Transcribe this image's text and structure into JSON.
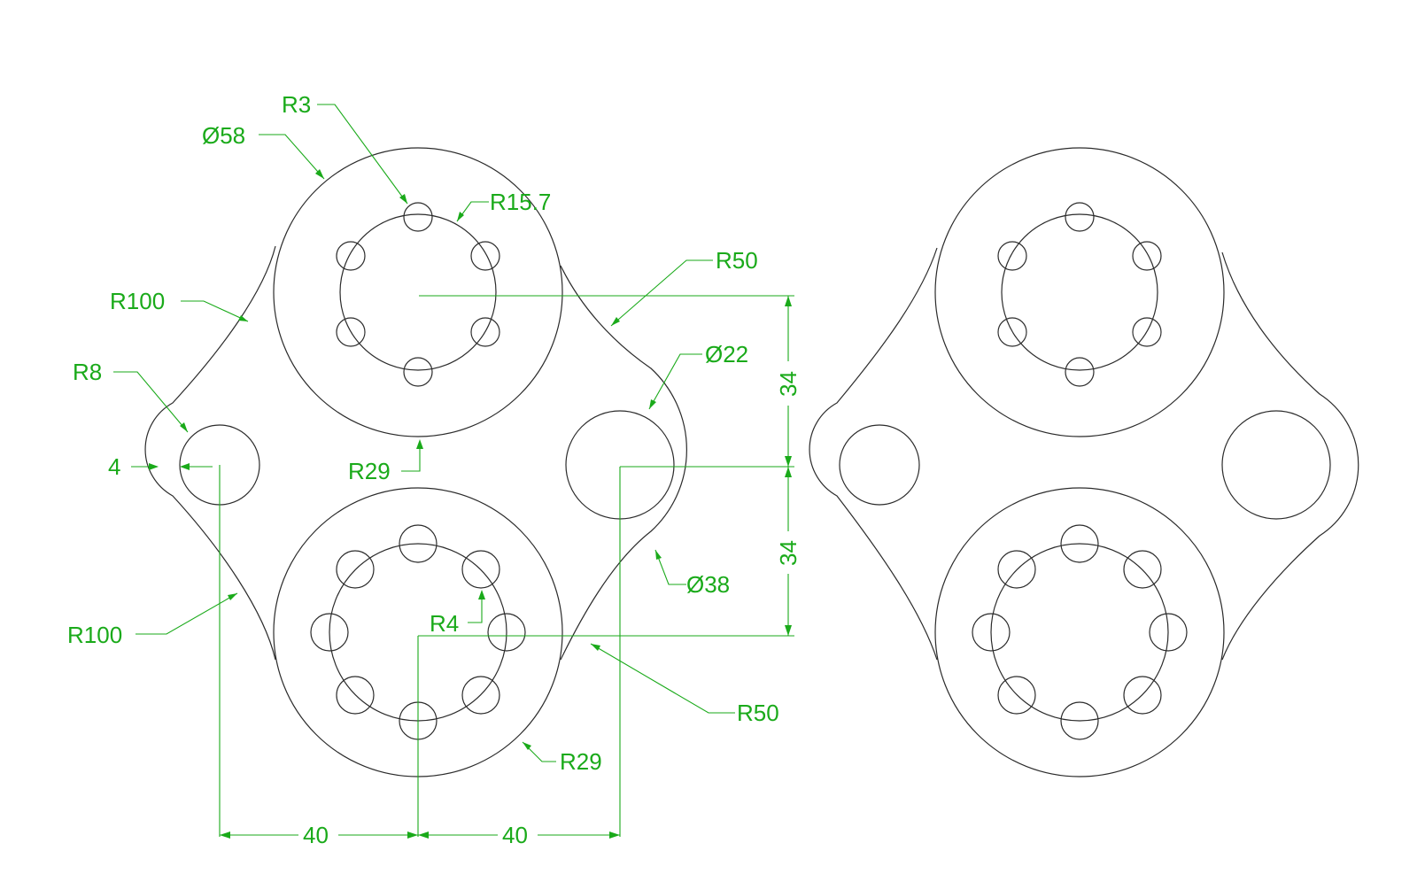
{
  "drawing": {
    "colors": {
      "geometry": "#2b2b2b",
      "dimension": "#1aaa1a",
      "background": "#ffffff"
    },
    "callouts": {
      "r3": "R3",
      "dia58": "Ø58",
      "r15_7": "R15.7",
      "r50_top": "R50",
      "r100_top": "R100",
      "dia22": "Ø22",
      "r8": "R8",
      "four": "4",
      "r29_mid": "R29",
      "dia38": "Ø38",
      "r4": "R4",
      "r100_bottom": "R100",
      "r50_bottom": "R50",
      "r29_bottom": "R29"
    },
    "dimensions": {
      "vertical_upper": "34",
      "vertical_lower": "34",
      "horizontal_left": "40",
      "horizontal_right": "40"
    }
  }
}
